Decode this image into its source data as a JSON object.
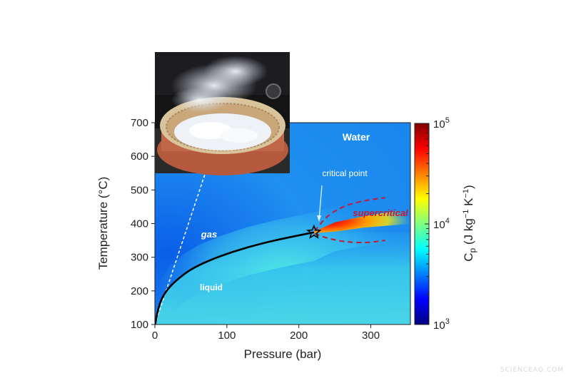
{
  "chart_data": {
    "type": "heatmap",
    "title": "Water",
    "xlabel": "Pressure (bar)",
    "ylabel": "Temperature (°C)",
    "xlim": [
      0,
      355
    ],
    "ylim": [
      100,
      700
    ],
    "xticks": [
      0,
      100,
      200,
      300
    ],
    "yticks": [
      100,
      200,
      300,
      400,
      500,
      600,
      700
    ],
    "colorbar": {
      "label_parts": [
        "C",
        "p",
        " (J kg",
        "−1",
        " K",
        "−1",
        ")"
      ],
      "scale": "log",
      "min": 1000,
      "max": 100000,
      "tick_labels": [
        {
          "base": "10",
          "exp": "3",
          "value": 1000
        },
        {
          "base": "10",
          "exp": "4",
          "value": 10000
        },
        {
          "base": "10",
          "exp": "5",
          "value": 100000
        }
      ],
      "colors": [
        "#00007f",
        "#0000ff",
        "#007fff",
        "#00ffff",
        "#7fff7f",
        "#ffff00",
        "#ff7f00",
        "#ff0000",
        "#7f0000"
      ]
    },
    "critical_point": {
      "x": 221,
      "y": 374
    },
    "saturation_curve": {
      "name": "boiling line",
      "x": [
        0.5,
        2,
        5,
        10,
        20,
        40,
        60,
        90,
        130,
        170,
        221
      ],
      "y": [
        100,
        120,
        150,
        180,
        212,
        250,
        276,
        303,
        331,
        352,
        374
      ]
    },
    "widom_line": {
      "x": [
        221,
        250,
        290,
        330,
        355
      ],
      "y": [
        374,
        390,
        405,
        415,
        422
      ]
    },
    "dashed_lines": [
      {
        "name": "white-dashed-line",
        "x": [
          0,
          70
        ],
        "y": [
          100,
          550
        ]
      },
      {
        "name": "widom-upper-bound",
        "x": [
          222,
          240,
          265,
          295,
          320
        ],
        "y": [
          378,
          425,
          455,
          470,
          477
        ]
      },
      {
        "name": "widom-lower-bound",
        "x": [
          222,
          240,
          265,
          295,
          320
        ],
        "y": [
          370,
          356,
          345,
          343,
          350
        ]
      }
    ],
    "annotations": {
      "water": "Water",
      "critical_point": "critical point",
      "supercritical": "supercritical",
      "gas": "gas",
      "liquid": "liquid"
    }
  },
  "watermark": "SCIENCEAQ.COM",
  "colors": {
    "pot_body": "#c0674a",
    "steam": "#e8eef4",
    "background_blue": "#1f8ff0"
  }
}
